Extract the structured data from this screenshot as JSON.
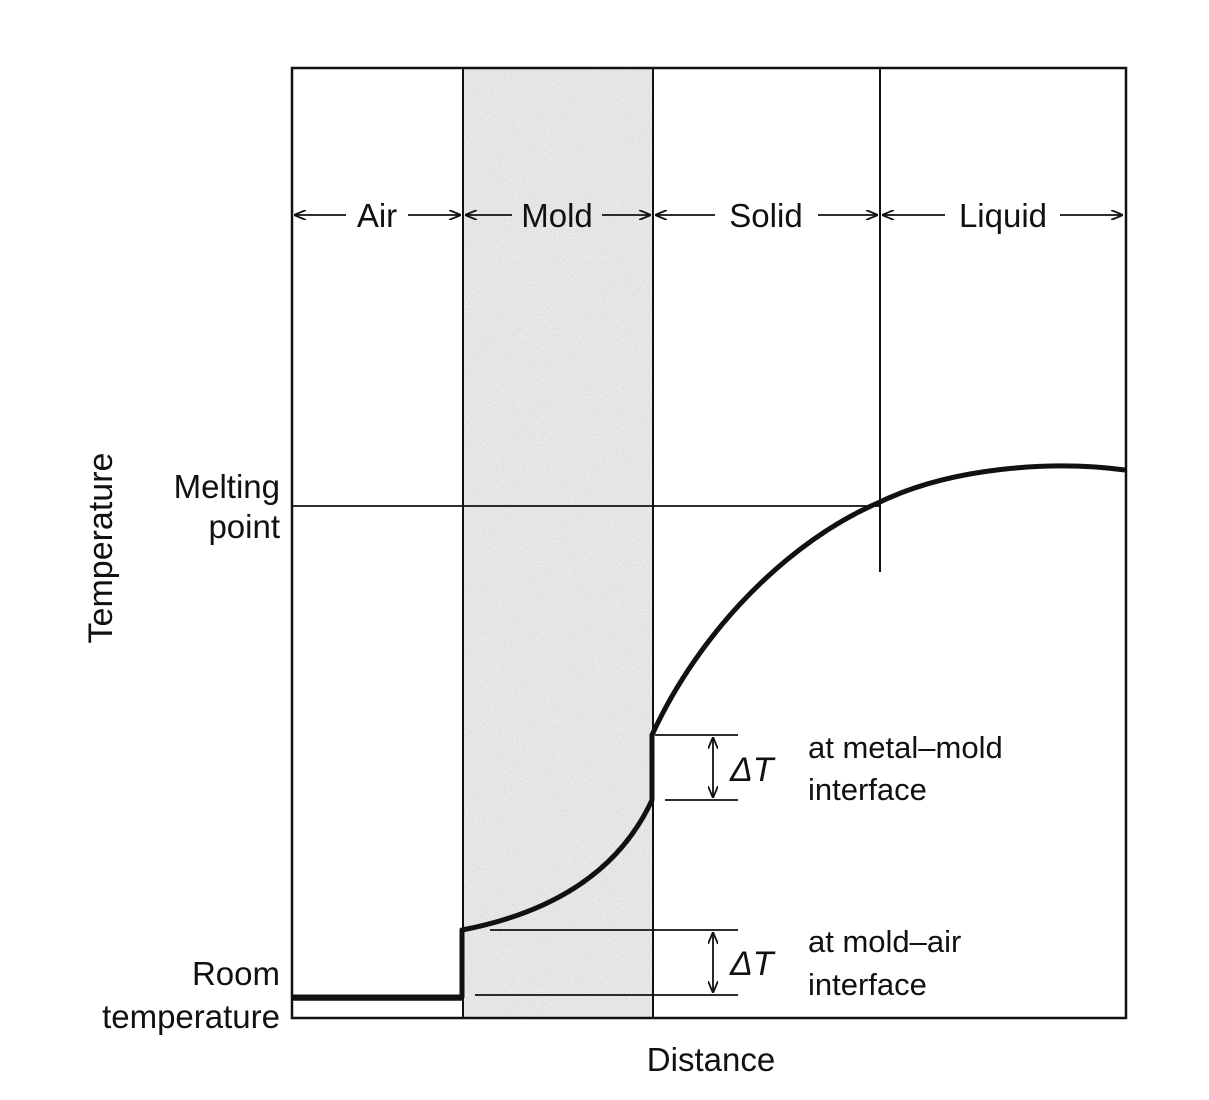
{
  "regions": {
    "air": "Air",
    "mold": "Mold",
    "solid": "Solid",
    "liquid": "Liquid"
  },
  "axes": {
    "ylabel": "Temperature",
    "xlabel": "Distance"
  },
  "levels": {
    "melting_point_line1": "Melting",
    "melting_point_line2": "point",
    "room_temp_line1": "Room",
    "room_temp_line2": "temperature"
  },
  "annotations": {
    "delta_symbol": "ΔT",
    "metal_mold_line1": "at metal–mold",
    "metal_mold_line2": "interface",
    "mold_air_line1": "at mold–air",
    "mold_air_line2": "interface"
  },
  "colors": {
    "ink": "#111111",
    "mold_shading": "#e2e2e2"
  }
}
